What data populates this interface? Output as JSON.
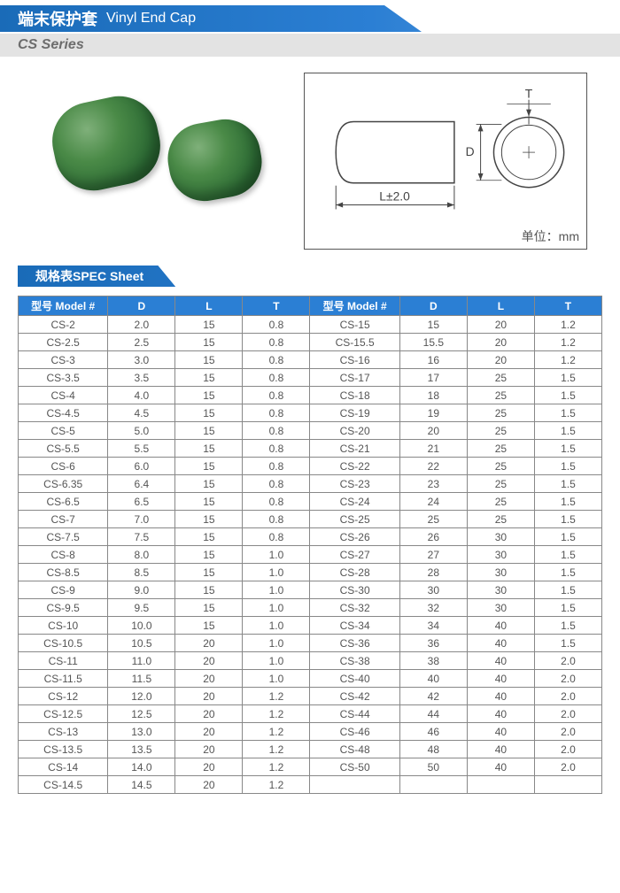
{
  "title": {
    "cn": "端末保护套",
    "en": "Vinyl End Cap"
  },
  "series": "CS Series",
  "diagram": {
    "L_label": "L±2.0",
    "D_label": "D",
    "T_label": "T",
    "unit": "单位：mm",
    "stroke": "#444444"
  },
  "spec_header": "规格表SPEC Sheet",
  "table": {
    "header_bg": "#2b7fd4",
    "columns": [
      "型号 Model #",
      "D",
      "L",
      "T",
      "型号 Model #",
      "D",
      "L",
      "T"
    ],
    "rows": [
      [
        "CS-2",
        "2.0",
        "15",
        "0.8",
        "CS-15",
        "15",
        "20",
        "1.2"
      ],
      [
        "CS-2.5",
        "2.5",
        "15",
        "0.8",
        "CS-15.5",
        "15.5",
        "20",
        "1.2"
      ],
      [
        "CS-3",
        "3.0",
        "15",
        "0.8",
        "CS-16",
        "16",
        "20",
        "1.2"
      ],
      [
        "CS-3.5",
        "3.5",
        "15",
        "0.8",
        "CS-17",
        "17",
        "25",
        "1.5"
      ],
      [
        "CS-4",
        "4.0",
        "15",
        "0.8",
        "CS-18",
        "18",
        "25",
        "1.5"
      ],
      [
        "CS-4.5",
        "4.5",
        "15",
        "0.8",
        "CS-19",
        "19",
        "25",
        "1.5"
      ],
      [
        "CS-5",
        "5.0",
        "15",
        "0.8",
        "CS-20",
        "20",
        "25",
        "1.5"
      ],
      [
        "CS-5.5",
        "5.5",
        "15",
        "0.8",
        "CS-21",
        "21",
        "25",
        "1.5"
      ],
      [
        "CS-6",
        "6.0",
        "15",
        "0.8",
        "CS-22",
        "22",
        "25",
        "1.5"
      ],
      [
        "CS-6.35",
        "6.4",
        "15",
        "0.8",
        "CS-23",
        "23",
        "25",
        "1.5"
      ],
      [
        "CS-6.5",
        "6.5",
        "15",
        "0.8",
        "CS-24",
        "24",
        "25",
        "1.5"
      ],
      [
        "CS-7",
        "7.0",
        "15",
        "0.8",
        "CS-25",
        "25",
        "25",
        "1.5"
      ],
      [
        "CS-7.5",
        "7.5",
        "15",
        "0.8",
        "CS-26",
        "26",
        "30",
        "1.5"
      ],
      [
        "CS-8",
        "8.0",
        "15",
        "1.0",
        "CS-27",
        "27",
        "30",
        "1.5"
      ],
      [
        "CS-8.5",
        "8.5",
        "15",
        "1.0",
        "CS-28",
        "28",
        "30",
        "1.5"
      ],
      [
        "CS-9",
        "9.0",
        "15",
        "1.0",
        "CS-30",
        "30",
        "30",
        "1.5"
      ],
      [
        "CS-9.5",
        "9.5",
        "15",
        "1.0",
        "CS-32",
        "32",
        "30",
        "1.5"
      ],
      [
        "CS-10",
        "10.0",
        "15",
        "1.0",
        "CS-34",
        "34",
        "40",
        "1.5"
      ],
      [
        "CS-10.5",
        "10.5",
        "20",
        "1.0",
        "CS-36",
        "36",
        "40",
        "1.5"
      ],
      [
        "CS-11",
        "11.0",
        "20",
        "1.0",
        "CS-38",
        "38",
        "40",
        "2.0"
      ],
      [
        "CS-11.5",
        "11.5",
        "20",
        "1.0",
        "CS-40",
        "40",
        "40",
        "2.0"
      ],
      [
        "CS-12",
        "12.0",
        "20",
        "1.2",
        "CS-42",
        "42",
        "40",
        "2.0"
      ],
      [
        "CS-12.5",
        "12.5",
        "20",
        "1.2",
        "CS-44",
        "44",
        "40",
        "2.0"
      ],
      [
        "CS-13",
        "13.0",
        "20",
        "1.2",
        "CS-46",
        "46",
        "40",
        "2.0"
      ],
      [
        "CS-13.5",
        "13.5",
        "20",
        "1.2",
        "CS-48",
        "48",
        "40",
        "2.0"
      ],
      [
        "CS-14",
        "14.0",
        "20",
        "1.2",
        "CS-50",
        "50",
        "40",
        "2.0"
      ],
      [
        "CS-14.5",
        "14.5",
        "20",
        "1.2",
        "",
        "",
        "",
        ""
      ]
    ]
  }
}
